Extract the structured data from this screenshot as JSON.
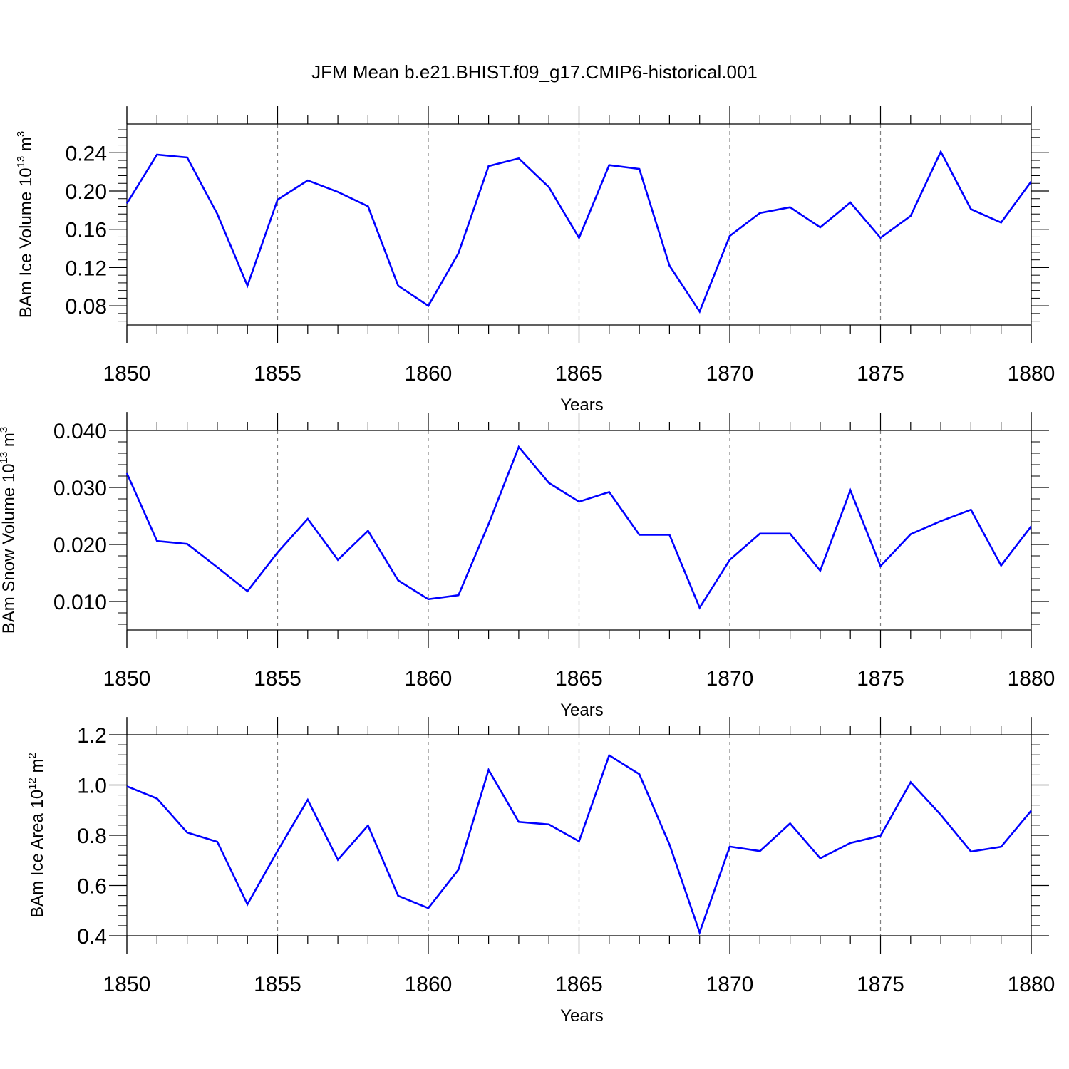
{
  "title": "JFM Mean b.e21.BHIST.f09_g17.CMIP6-historical.001",
  "colors": {
    "series": "#0000ff",
    "axes": "#000000",
    "grid": "#808080"
  },
  "chart_data": [
    {
      "type": "line",
      "ylabel": {
        "text": "BAm Ice Volume 10",
        "exp": "13",
        "unit": " m",
        "unit_exp": "3"
      },
      "xlabel": "Years",
      "xlim": [
        1850,
        1880
      ],
      "ylim": [
        0.06,
        0.27
      ],
      "x_ticks": [
        "1850",
        "1855",
        "1860",
        "1865",
        "1870",
        "1875",
        "1880"
      ],
      "y_ticks": [
        "0.08",
        "0.12",
        "0.16",
        "0.20",
        "0.24"
      ],
      "grid": "vertical dashed at major x ticks",
      "x": [
        1850,
        1851,
        1852,
        1853,
        1854,
        1855,
        1856,
        1857,
        1858,
        1859,
        1860,
        1861,
        1862,
        1863,
        1864,
        1865,
        1866,
        1867,
        1868,
        1869,
        1870,
        1871,
        1872,
        1873,
        1874,
        1875,
        1876,
        1877,
        1878,
        1879,
        1880
      ],
      "values": [
        0.187,
        0.238,
        0.235,
        0.176,
        0.101,
        0.191,
        0.211,
        0.199,
        0.184,
        0.101,
        0.08,
        0.135,
        0.226,
        0.234,
        0.204,
        0.151,
        0.227,
        0.223,
        0.122,
        0.074,
        0.153,
        0.177,
        0.183,
        0.162,
        0.188,
        0.151,
        0.174,
        0.241,
        0.181,
        0.167,
        0.21
      ]
    },
    {
      "type": "line",
      "ylabel": {
        "text": "BAm Snow Volume 10",
        "exp": "13",
        "unit": " m",
        "unit_exp": "3"
      },
      "xlabel": "Years",
      "xlim": [
        1850,
        1880
      ],
      "ylim": [
        0.005,
        0.04
      ],
      "x_ticks": [
        "1850",
        "1855",
        "1860",
        "1865",
        "1870",
        "1875",
        "1880"
      ],
      "y_ticks": [
        "0.010",
        "0.020",
        "0.030",
        "0.040"
      ],
      "grid": "vertical dashed at major x ticks",
      "x": [
        1850,
        1851,
        1852,
        1853,
        1854,
        1855,
        1856,
        1857,
        1858,
        1859,
        1860,
        1861,
        1862,
        1863,
        1864,
        1865,
        1866,
        1867,
        1868,
        1869,
        1870,
        1871,
        1872,
        1873,
        1874,
        1875,
        1876,
        1877,
        1878,
        1879,
        1880
      ],
      "values": [
        0.0325,
        0.0206,
        0.0201,
        0.016,
        0.0118,
        0.0186,
        0.0245,
        0.0173,
        0.0224,
        0.0137,
        0.0104,
        0.0111,
        0.0236,
        0.0371,
        0.0308,
        0.0275,
        0.0292,
        0.0217,
        0.0217,
        0.0089,
        0.0173,
        0.0219,
        0.0219,
        0.0154,
        0.0295,
        0.0162,
        0.0218,
        0.0241,
        0.0261,
        0.0163,
        0.0232
      ]
    },
    {
      "type": "line",
      "ylabel": {
        "text": "BAm Ice Area 10",
        "exp": "12",
        "unit": " m",
        "unit_exp": "2"
      },
      "xlabel": "Years",
      "xlim": [
        1850,
        1880
      ],
      "ylim": [
        0.4,
        1.2
      ],
      "x_ticks": [
        "1850",
        "1855",
        "1860",
        "1865",
        "1870",
        "1875",
        "1880"
      ],
      "y_ticks": [
        "0.4",
        "0.6",
        "0.8",
        "1.0",
        "1.2"
      ],
      "grid": "vertical dashed at major x ticks",
      "x": [
        1850,
        1851,
        1852,
        1853,
        1854,
        1855,
        1856,
        1857,
        1858,
        1859,
        1860,
        1861,
        1862,
        1863,
        1864,
        1865,
        1866,
        1867,
        1868,
        1869,
        1870,
        1871,
        1872,
        1873,
        1874,
        1875,
        1876,
        1877,
        1878,
        1879,
        1880
      ],
      "values": [
        0.995,
        0.946,
        0.811,
        0.774,
        0.525,
        0.738,
        0.941,
        0.702,
        0.839,
        0.559,
        0.51,
        0.663,
        1.06,
        0.853,
        0.843,
        0.776,
        1.118,
        1.043,
        0.763,
        0.413,
        0.755,
        0.737,
        0.847,
        0.708,
        0.769,
        0.798,
        1.011,
        0.881,
        0.735,
        0.754,
        0.898
      ]
    }
  ]
}
